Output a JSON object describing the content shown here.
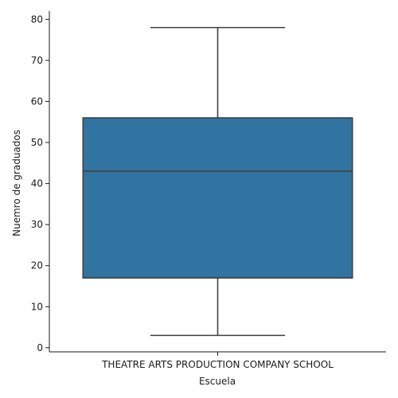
{
  "chart_data": {
    "type": "box",
    "title": "",
    "xlabel": "Escuela",
    "ylabel": "Nuemro de graduados",
    "categories": [
      "THEATRE ARTS PRODUCTION COMPANY SCHOOL"
    ],
    "boxes": [
      {
        "category": "THEATRE ARTS PRODUCTION COMPANY SCHOOL",
        "whisker_low": 3,
        "q1": 17,
        "median": 43,
        "q3": 56,
        "whisker_high": 78
      }
    ],
    "ylim": [
      -1,
      82
    ],
    "yticks": [
      0,
      10,
      20,
      30,
      40,
      50,
      60,
      70,
      80
    ],
    "grid": false,
    "legend": "none",
    "colors": {
      "box_fill": "#3274a1",
      "line": "#3f3f3f",
      "axis": "#1a1a1a"
    }
  }
}
